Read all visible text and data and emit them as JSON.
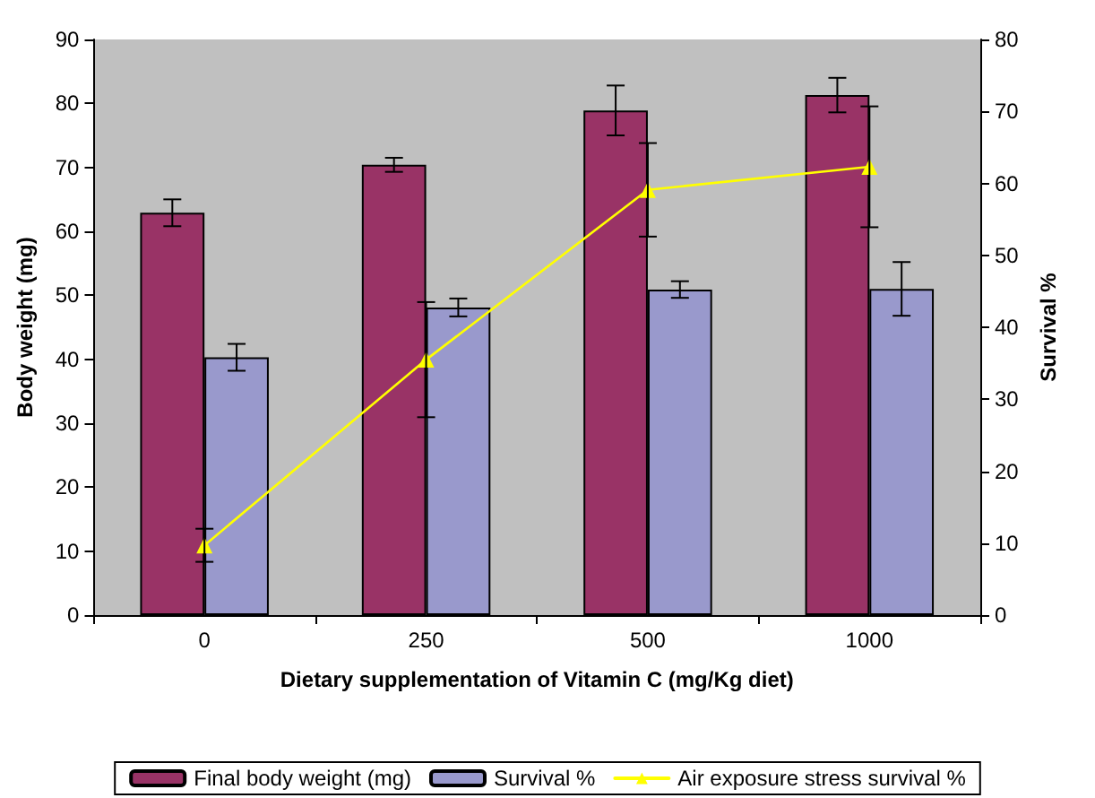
{
  "chart_data": {
    "type": "bar",
    "xlabel": "Dietary supplementation of Vitamin C (mg/Kg diet)",
    "ylabel": "Body weight (mg)",
    "y2label": "Survival %",
    "categories": [
      "0",
      "250",
      "500",
      "1000"
    ],
    "series": [
      {
        "name": "Final body weight (mg)",
        "color": "#993366",
        "values": [
          62.9,
          70.4,
          78.9,
          81.3
        ],
        "errors": [
          2.1,
          1.1,
          3.9,
          2.7
        ]
      },
      {
        "name": "Survival %",
        "color": "#9999cc",
        "values": [
          40.3,
          48.1,
          50.9,
          51
        ],
        "errors": [
          2.1,
          1.4,
          1.3,
          4.2
        ]
      },
      {
        "name": "Air exposure stress survival %",
        "type": "line",
        "axis": "y2",
        "color": "#ffff00",
        "marker": "triangle",
        "values": [
          9.7,
          35.5,
          59.1,
          62.3
        ],
        "errors": [
          2.3,
          8,
          6.5,
          8.4
        ]
      }
    ],
    "ylim": [
      0,
      90
    ],
    "yticks": [
      0,
      10,
      20,
      30,
      40,
      50,
      60,
      70,
      80,
      90
    ],
    "y2lim": [
      0,
      80
    ],
    "y2ticks": [
      0,
      10,
      20,
      30,
      40,
      50,
      60,
      70,
      80
    ],
    "grid": false,
    "legend": "bottom"
  }
}
